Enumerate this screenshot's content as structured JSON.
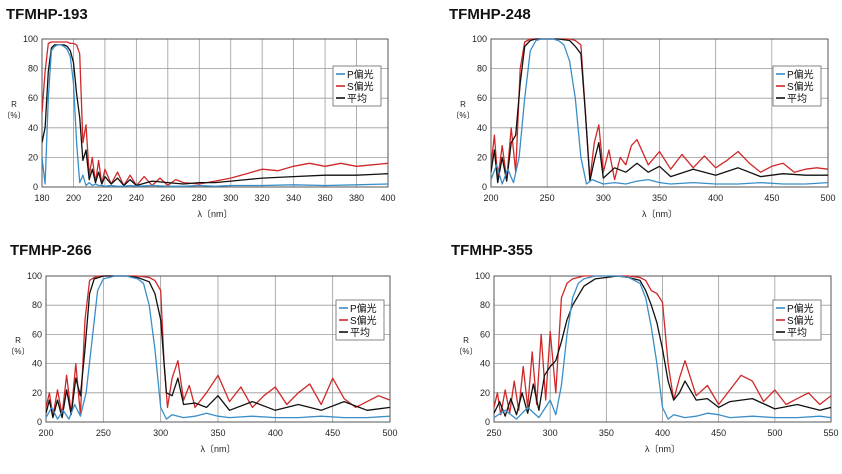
{
  "chart_data": [
    {
      "type": "line",
      "title": "TFMHP-193",
      "xlabel": "λ〔nm〕",
      "ylabel": "R\n〔%〕",
      "xlim": [
        180,
        400
      ],
      "ylim": [
        0,
        100
      ],
      "xticks": [
        180,
        200,
        220,
        240,
        260,
        280,
        300,
        320,
        340,
        360,
        380,
        400
      ],
      "yticks": [
        0,
        20,
        40,
        60,
        80,
        100
      ],
      "grid": true,
      "legend": "right",
      "series": [
        {
          "name": "P偏光",
          "color": "#3a8ec8",
          "x": [
            180,
            182,
            184,
            186,
            188,
            190,
            192,
            194,
            196,
            198,
            200,
            202,
            204,
            206,
            208,
            210,
            212,
            214,
            216,
            218,
            220,
            224,
            228,
            232,
            236,
            240,
            250,
            260,
            270,
            280,
            290,
            300,
            320,
            340,
            360,
            380,
            400
          ],
          "y": [
            20,
            2,
            60,
            92,
            95,
            96,
            96,
            95,
            93,
            88,
            70,
            30,
            3,
            8,
            1,
            3,
            1,
            2,
            1,
            1,
            0.5,
            1,
            0.5,
            0.5,
            1,
            0.5,
            1,
            0.5,
            0.5,
            1,
            0.5,
            1,
            1,
            1.5,
            1,
            1.5,
            2
          ]
        },
        {
          "name": "S偏光",
          "color": "#d02828",
          "x": [
            180,
            182,
            184,
            186,
            188,
            190,
            192,
            194,
            196,
            198,
            200,
            202,
            204,
            206,
            208,
            210,
            212,
            214,
            216,
            218,
            220,
            224,
            228,
            232,
            236,
            240,
            245,
            250,
            255,
            260,
            265,
            270,
            280,
            290,
            300,
            310,
            320,
            330,
            340,
            350,
            360,
            370,
            380,
            390,
            400
          ],
          "y": [
            50,
            78,
            97,
            98,
            98,
            98,
            98,
            98,
            98,
            97,
            97,
            96,
            90,
            30,
            42,
            8,
            20,
            3,
            18,
            2,
            12,
            2,
            10,
            1,
            8,
            1,
            7,
            1,
            6,
            1,
            5,
            3,
            2,
            4,
            6,
            9,
            12,
            11,
            14,
            16,
            14,
            16,
            14,
            15,
            16
          ]
        },
        {
          "name": "平均",
          "color": "#111111",
          "x": [
            180,
            182,
            184,
            186,
            188,
            190,
            192,
            194,
            196,
            198,
            200,
            202,
            204,
            206,
            208,
            210,
            212,
            214,
            216,
            218,
            220,
            224,
            228,
            232,
            236,
            240,
            250,
            260,
            270,
            280,
            290,
            300,
            310,
            320,
            340,
            360,
            380,
            400
          ],
          "y": [
            30,
            40,
            78,
            94,
            96,
            96,
            96,
            96,
            95,
            92,
            84,
            63,
            47,
            18,
            25,
            5,
            12,
            3,
            10,
            2,
            7,
            2,
            6,
            1,
            5,
            1,
            4,
            3,
            2,
            3,
            3,
            4,
            5,
            6,
            7,
            8,
            8,
            9
          ]
        }
      ]
    },
    {
      "type": "line",
      "title": "TFMHP-248",
      "xlabel": "λ〔nm〕",
      "ylabel": "R\n〔%〕",
      "xlim": [
        200,
        500
      ],
      "ylim": [
        0,
        100
      ],
      "xticks": [
        200,
        250,
        300,
        350,
        400,
        450,
        500
      ],
      "yticks": [
        0,
        20,
        40,
        60,
        80,
        100
      ],
      "grid": true,
      "legend": "right",
      "series": [
        {
          "name": "P偏光",
          "color": "#3a8ec8",
          "x": [
            200,
            205,
            210,
            215,
            220,
            225,
            230,
            235,
            240,
            245,
            250,
            255,
            260,
            265,
            270,
            275,
            280,
            285,
            290,
            300,
            310,
            320,
            330,
            340,
            350,
            360,
            380,
            400,
            420,
            440,
            460,
            480,
            500
          ],
          "y": [
            5,
            15,
            2,
            12,
            3,
            20,
            60,
            92,
            99,
            100,
            100,
            100,
            99,
            96,
            85,
            60,
            20,
            2,
            5,
            2,
            3,
            2,
            4,
            5,
            3,
            2,
            3,
            2,
            2,
            3,
            2,
            2,
            3
          ]
        },
        {
          "name": "S偏光",
          "color": "#d02828",
          "x": [
            200,
            203,
            206,
            210,
            214,
            218,
            222,
            226,
            230,
            235,
            240,
            250,
            260,
            270,
            275,
            280,
            284,
            288,
            292,
            296,
            300,
            305,
            310,
            315,
            320,
            325,
            330,
            340,
            350,
            360,
            370,
            380,
            390,
            400,
            410,
            420,
            430,
            440,
            450,
            460,
            470,
            480,
            490,
            500
          ],
          "y": [
            15,
            35,
            5,
            28,
            5,
            40,
            10,
            80,
            98,
            100,
            100,
            100,
            100,
            100,
            99,
            96,
            50,
            5,
            30,
            42,
            10,
            25,
            5,
            20,
            15,
            28,
            32,
            15,
            24,
            12,
            22,
            13,
            21,
            13,
            18,
            24,
            16,
            10,
            14,
            16,
            10,
            12,
            13,
            12
          ]
        },
        {
          "name": "平均",
          "color": "#111111",
          "x": [
            200,
            203,
            206,
            210,
            214,
            218,
            222,
            226,
            230,
            235,
            240,
            250,
            260,
            270,
            275,
            280,
            284,
            288,
            292,
            296,
            300,
            310,
            320,
            330,
            340,
            350,
            360,
            380,
            400,
            420,
            440,
            460,
            480,
            500
          ],
          "y": [
            10,
            25,
            3,
            20,
            4,
            30,
            35,
            70,
            95,
            99,
            100,
            100,
            100,
            99,
            95,
            90,
            50,
            4,
            18,
            30,
            6,
            13,
            10,
            16,
            10,
            14,
            7,
            12,
            8,
            13,
            7,
            9,
            8,
            8
          ]
        }
      ]
    },
    {
      "type": "line",
      "title": "TFMHP-266",
      "xlabel": "λ〔nm〕",
      "ylabel": "R\n〔%〕",
      "xlim": [
        200,
        500
      ],
      "ylim": [
        0,
        100
      ],
      "xticks": [
        200,
        250,
        300,
        350,
        400,
        450,
        500
      ],
      "yticks": [
        0,
        20,
        40,
        60,
        80,
        100
      ],
      "grid": true,
      "legend": "right",
      "series": [
        {
          "name": "P偏光",
          "color": "#3a8ec8",
          "x": [
            200,
            205,
            210,
            215,
            220,
            225,
            230,
            235,
            240,
            245,
            250,
            255,
            260,
            270,
            280,
            285,
            290,
            295,
            300,
            305,
            310,
            320,
            330,
            340,
            350,
            360,
            380,
            400,
            420,
            440,
            460,
            480,
            500
          ],
          "y": [
            3,
            10,
            2,
            8,
            2,
            12,
            4,
            20,
            55,
            90,
            98,
            99,
            100,
            100,
            98,
            95,
            80,
            50,
            10,
            2,
            5,
            3,
            4,
            6,
            4,
            3,
            4,
            3,
            3,
            4,
            3,
            3,
            4
          ]
        },
        {
          "name": "S偏光",
          "color": "#d02828",
          "x": [
            200,
            203,
            206,
            210,
            214,
            218,
            222,
            226,
            230,
            234,
            238,
            242,
            246,
            250,
            260,
            270,
            280,
            290,
            295,
            300,
            303,
            306,
            310,
            315,
            320,
            325,
            330,
            340,
            350,
            360,
            370,
            380,
            390,
            400,
            410,
            420,
            430,
            440,
            450,
            460,
            470,
            480,
            490,
            500
          ],
          "y": [
            10,
            20,
            4,
            22,
            5,
            32,
            6,
            40,
            5,
            70,
            97,
            99,
            100,
            100,
            100,
            100,
            100,
            99,
            97,
            90,
            40,
            10,
            30,
            42,
            15,
            25,
            10,
            20,
            32,
            14,
            24,
            10,
            18,
            24,
            12,
            20,
            26,
            12,
            30,
            16,
            10,
            14,
            18,
            15
          ]
        },
        {
          "name": "平均",
          "color": "#111111",
          "x": [
            200,
            203,
            206,
            210,
            214,
            218,
            222,
            226,
            230,
            234,
            238,
            242,
            246,
            250,
            260,
            270,
            280,
            290,
            295,
            300,
            305,
            310,
            315,
            320,
            330,
            340,
            350,
            360,
            380,
            400,
            420,
            440,
            460,
            480,
            500
          ],
          "y": [
            6,
            15,
            3,
            15,
            3,
            22,
            5,
            30,
            18,
            50,
            88,
            98,
            99,
            100,
            100,
            100,
            99,
            96,
            88,
            70,
            20,
            18,
            30,
            12,
            13,
            10,
            18,
            8,
            14,
            8,
            12,
            8,
            14,
            8,
            10
          ]
        }
      ]
    },
    {
      "type": "line",
      "title": "TFMHP-355",
      "xlabel": "λ〔nm〕",
      "ylabel": "R\n〔%〕",
      "xlim": [
        250,
        550
      ],
      "ylim": [
        0,
        100
      ],
      "xticks": [
        250,
        300,
        350,
        400,
        450,
        500,
        550
      ],
      "yticks": [
        0,
        20,
        40,
        60,
        80,
        100
      ],
      "grid": true,
      "legend": "right",
      "series": [
        {
          "name": "P偏光",
          "color": "#3a8ec8",
          "x": [
            250,
            260,
            270,
            280,
            290,
            300,
            305,
            310,
            315,
            320,
            325,
            330,
            340,
            350,
            360,
            370,
            380,
            385,
            390,
            395,
            400,
            405,
            410,
            420,
            430,
            440,
            450,
            460,
            480,
            500,
            520,
            540,
            550
          ],
          "y": [
            3,
            8,
            2,
            10,
            3,
            15,
            5,
            25,
            60,
            85,
            95,
            98,
            100,
            100,
            100,
            99,
            95,
            85,
            65,
            40,
            10,
            2,
            5,
            3,
            4,
            6,
            5,
            3,
            4,
            3,
            3,
            4,
            3
          ]
        },
        {
          "name": "S偏光",
          "color": "#d02828",
          "x": [
            250,
            253,
            256,
            260,
            264,
            268,
            272,
            276,
            280,
            284,
            288,
            292,
            296,
            300,
            305,
            310,
            315,
            320,
            330,
            340,
            350,
            360,
            370,
            380,
            385,
            390,
            395,
            400,
            405,
            410,
            415,
            420,
            430,
            440,
            450,
            460,
            470,
            480,
            490,
            500,
            510,
            520,
            530,
            540,
            550
          ],
          "y": [
            10,
            20,
            5,
            22,
            6,
            28,
            8,
            38,
            10,
            48,
            12,
            60,
            15,
            62,
            20,
            85,
            95,
            98,
            100,
            100,
            100,
            100,
            100,
            99,
            97,
            90,
            88,
            82,
            40,
            15,
            30,
            42,
            18,
            25,
            12,
            22,
            32,
            28,
            14,
            22,
            12,
            16,
            20,
            12,
            18
          ]
        },
        {
          "name": "平均",
          "color": "#111111",
          "x": [
            250,
            255,
            260,
            265,
            270,
            275,
            280,
            285,
            290,
            295,
            300,
            305,
            310,
            315,
            320,
            330,
            340,
            350,
            360,
            370,
            380,
            385,
            390,
            395,
            400,
            405,
            410,
            415,
            420,
            430,
            440,
            450,
            460,
            480,
            500,
            520,
            540,
            550
          ],
          "y": [
            6,
            14,
            4,
            16,
            5,
            20,
            6,
            26,
            8,
            32,
            38,
            42,
            55,
            70,
            80,
            93,
            98,
            99,
            100,
            99,
            97,
            90,
            80,
            68,
            50,
            28,
            15,
            20,
            28,
            15,
            16,
            10,
            14,
            16,
            9,
            12,
            8,
            10
          ]
        }
      ]
    }
  ]
}
